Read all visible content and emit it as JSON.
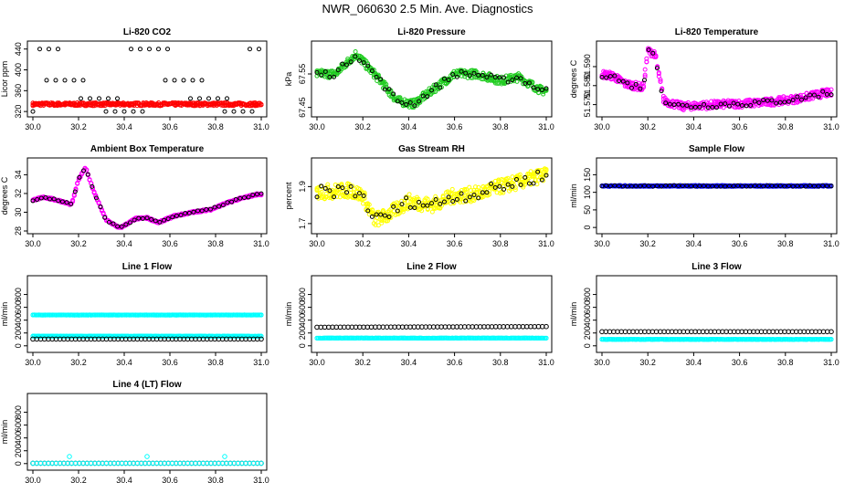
{
  "title": "NWR_060630  2.5 Min. Ave. Diagnostics",
  "colors": {
    "red": "#ff0000",
    "green": "#22cc22",
    "magenta": "#ff00ff",
    "yellow": "#ffff00",
    "blue": "#0000ff",
    "cyan": "#00ffff",
    "black": "#000000"
  },
  "chart_data": [
    {
      "id": "li820-co2",
      "type": "scatter",
      "title": "Li-820 CO2",
      "xlabel": "",
      "ylabel": "Licor ppm",
      "xlim": [
        30.0,
        31.0
      ],
      "ylim": [
        315,
        450
      ],
      "xticks": [
        "30.0",
        "30.2",
        "30.4",
        "30.6",
        "30.8",
        "31.0"
      ],
      "yticks": [
        320,
        360,
        400,
        440
      ],
      "series": [
        {
          "name": "co2-ave",
          "color": "red",
          "y_start": 334,
          "y_end": 334,
          "kind": "band",
          "noise": 3
        },
        {
          "name": "co2-ref",
          "color": "black",
          "kind": "scattered",
          "levels": [
            320,
            345,
            380,
            440
          ]
        }
      ]
    },
    {
      "id": "li820-pressure",
      "type": "scatter",
      "title": "Li-820 Pressure",
      "xlabel": "",
      "ylabel": "kPa",
      "xlim": [
        30.0,
        31.0
      ],
      "ylim": [
        67.43,
        67.64
      ],
      "xticks": [
        "30.0",
        "30.2",
        "30.4",
        "30.6",
        "30.8",
        "31.0"
      ],
      "yticks": [
        67.45,
        67.55
      ],
      "yticklabels": [
        "67.45",
        "67.55"
      ],
      "series": [
        {
          "name": "pressure",
          "color": "green",
          "kind": "band",
          "noise": 0.012,
          "knots": [
            [
              30.0,
              67.55
            ],
            [
              30.08,
              67.55
            ],
            [
              30.17,
              67.61
            ],
            [
              30.25,
              67.55
            ],
            [
              30.35,
              67.47
            ],
            [
              30.42,
              67.46
            ],
            [
              30.5,
              67.5
            ],
            [
              30.6,
              67.55
            ],
            [
              30.7,
              67.55
            ],
            [
              30.8,
              67.53
            ],
            [
              30.88,
              67.54
            ],
            [
              30.98,
              67.5
            ]
          ]
        },
        {
          "name": "pressure-black",
          "color": "black",
          "kind": "overlay"
        }
      ]
    },
    {
      "id": "li820-temperature",
      "type": "scatter",
      "title": "Li-820 Temperature",
      "xlabel": "",
      "ylabel": "degrees C",
      "xlim": [
        30.0,
        31.0
      ],
      "ylim": [
        51.565,
        51.602
      ],
      "xticks": [
        "30.0",
        "30.2",
        "30.4",
        "30.6",
        "30.8",
        "31.0"
      ],
      "yticks": [
        51.57,
        51.58,
        51.59
      ],
      "yticklabels": [
        "51.570",
        "51.580",
        "51.590"
      ],
      "series": [
        {
          "name": "temperature",
          "color": "magenta",
          "kind": "band",
          "noise": 0.002,
          "knots": [
            [
              30.0,
              51.586
            ],
            [
              30.05,
              51.585
            ],
            [
              30.1,
              51.581
            ],
            [
              30.18,
              51.579
            ],
            [
              30.2,
              51.598
            ],
            [
              30.23,
              51.597
            ],
            [
              30.27,
              51.572
            ],
            [
              30.35,
              51.569
            ],
            [
              30.5,
              51.57
            ],
            [
              30.7,
              51.571
            ],
            [
              30.85,
              51.573
            ],
            [
              30.97,
              51.576
            ]
          ]
        },
        {
          "name": "temperature-black",
          "color": "black",
          "kind": "overlay"
        }
      ]
    },
    {
      "id": "ambient-box-temperature",
      "type": "scatter",
      "title": "Ambient Box Temperature",
      "xlabel": "",
      "ylabel": "degrees C",
      "xlim": [
        30.0,
        31.0
      ],
      "ylim": [
        28,
        35.5
      ],
      "xticks": [
        "30.0",
        "30.2",
        "30.4",
        "30.6",
        "30.8",
        "31.0"
      ],
      "yticks": [
        28,
        30,
        32,
        34
      ],
      "series": [
        {
          "name": "box-temp",
          "color": "magenta",
          "kind": "band",
          "noise": 0.1,
          "knots": [
            [
              30.0,
              31.3
            ],
            [
              30.05,
              31.6
            ],
            [
              30.12,
              31.2
            ],
            [
              30.17,
              30.8
            ],
            [
              30.2,
              33.5
            ],
            [
              30.23,
              34.8
            ],
            [
              30.27,
              32.0
            ],
            [
              30.32,
              29.2
            ],
            [
              30.38,
              28.3
            ],
            [
              30.45,
              29.3
            ],
            [
              30.5,
              29.4
            ],
            [
              30.55,
              28.9
            ],
            [
              30.62,
              29.6
            ],
            [
              30.7,
              30.0
            ],
            [
              30.78,
              30.3
            ],
            [
              30.83,
              30.8
            ],
            [
              30.9,
              31.4
            ],
            [
              30.98,
              31.9
            ]
          ]
        },
        {
          "name": "box-temp-black",
          "color": "black",
          "kind": "overlay"
        }
      ]
    },
    {
      "id": "gas-stream-rh",
      "type": "scatter",
      "title": "Gas Stream RH",
      "xlabel": "",
      "ylabel": "percent",
      "xlim": [
        30.0,
        31.0
      ],
      "ylim": [
        1.66,
        2.04
      ],
      "xticks": [
        "30.0",
        "30.2",
        "30.4",
        "30.6",
        "30.8",
        "31.0"
      ],
      "yticks": [
        1.7,
        1.9
      ],
      "yticklabels": [
        "1.7",
        "1.9"
      ],
      "series": [
        {
          "name": "rh",
          "color": "yellow",
          "kind": "band",
          "noise": 0.04,
          "knots": [
            [
              30.0,
              1.87
            ],
            [
              30.15,
              1.88
            ],
            [
              30.2,
              1.85
            ],
            [
              30.25,
              1.72
            ],
            [
              30.3,
              1.74
            ],
            [
              30.4,
              1.82
            ],
            [
              30.5,
              1.8
            ],
            [
              30.6,
              1.85
            ],
            [
              30.7,
              1.86
            ],
            [
              30.8,
              1.9
            ],
            [
              30.9,
              1.93
            ],
            [
              30.98,
              1.96
            ]
          ]
        },
        {
          "name": "rh-black",
          "color": "black",
          "kind": "overlay"
        }
      ]
    },
    {
      "id": "sample-flow",
      "type": "scatter",
      "title": "Sample Flow",
      "xlabel": "",
      "ylabel": "ml/min",
      "xlim": [
        30.0,
        31.0
      ],
      "ylim": [
        -10,
        190
      ],
      "xticks": [
        "30.0",
        "30.2",
        "30.4",
        "30.6",
        "30.8",
        "31.0"
      ],
      "yticks": [
        0,
        50,
        100,
        150
      ],
      "series": [
        {
          "name": "flow-blue",
          "color": "blue",
          "kind": "band",
          "noise": 1.5,
          "knots": [
            [
              30.0,
              118
            ],
            [
              31.0,
              118
            ]
          ]
        },
        {
          "name": "flow-black",
          "color": "black",
          "kind": "overlay"
        }
      ]
    },
    {
      "id": "line-1-flow",
      "type": "scatter",
      "title": "Line 1 Flow",
      "xlabel": "",
      "ylabel": "ml/min",
      "xlim": [
        30.0,
        31.0
      ],
      "ylim": [
        -60,
        1050
      ],
      "xticks": [
        "30.0",
        "30.2",
        "30.4",
        "30.6",
        "30.8",
        "31.0"
      ],
      "yticks": [
        0,
        200,
        400,
        600,
        800
      ],
      "series": [
        {
          "name": "l1-high",
          "color": "cyan",
          "kind": "band",
          "noise": 3,
          "knots": [
            [
              30.0,
              480
            ],
            [
              31.0,
              480
            ]
          ]
        },
        {
          "name": "l1-mid",
          "color": "cyan",
          "kind": "band",
          "noise": 3,
          "knots": [
            [
              30.0,
              150
            ],
            [
              31.0,
              150
            ]
          ]
        },
        {
          "name": "l1-low",
          "color": "black",
          "kind": "ring",
          "knots": [
            [
              30.0,
              105
            ],
            [
              31.0,
              105
            ]
          ]
        }
      ]
    },
    {
      "id": "line-2-flow",
      "type": "scatter",
      "title": "Line 2 Flow",
      "xlabel": "",
      "ylabel": "ml/min",
      "xlim": [
        30.0,
        31.0
      ],
      "ylim": [
        -60,
        1050
      ],
      "xticks": [
        "30.0",
        "30.2",
        "30.4",
        "30.6",
        "30.8",
        "31.0"
      ],
      "yticks": [
        0,
        200,
        400,
        600,
        800
      ],
      "series": [
        {
          "name": "l2-high",
          "color": "black",
          "kind": "ring",
          "knots": [
            [
              30.0,
              290
            ],
            [
              31.0,
              300
            ]
          ]
        },
        {
          "name": "l2-low",
          "color": "cyan",
          "kind": "band",
          "noise": 3,
          "knots": [
            [
              30.0,
              120
            ],
            [
              31.0,
              120
            ]
          ]
        }
      ]
    },
    {
      "id": "line-3-flow",
      "type": "scatter",
      "title": "Line 3 Flow",
      "xlabel": "",
      "ylabel": "ml/min",
      "xlim": [
        30.0,
        31.0
      ],
      "ylim": [
        -60,
        1050
      ],
      "xticks": [
        "30.0",
        "30.2",
        "30.4",
        "30.6",
        "30.8",
        "31.0"
      ],
      "yticks": [
        0,
        200,
        400,
        600,
        800
      ],
      "series": [
        {
          "name": "l3-high",
          "color": "black",
          "kind": "ring",
          "knots": [
            [
              30.0,
              220
            ],
            [
              31.0,
              220
            ]
          ]
        },
        {
          "name": "l3-low",
          "color": "cyan",
          "kind": "band",
          "noise": 3,
          "knots": [
            [
              30.0,
              100
            ],
            [
              31.0,
              100
            ]
          ]
        }
      ]
    },
    {
      "id": "line-4-flow",
      "type": "scatter",
      "title": "Line 4 (LT) Flow",
      "xlabel": "",
      "ylabel": "ml/min",
      "xlim": [
        30.0,
        31.0
      ],
      "ylim": [
        -60,
        1050
      ],
      "xticks": [
        "30.0",
        "30.2",
        "30.4",
        "30.6",
        "30.8",
        "31.0"
      ],
      "yticks": [
        0,
        200,
        400,
        600,
        800
      ],
      "series": [
        {
          "name": "l4-base",
          "color": "black",
          "kind": "ring",
          "knots": [
            [
              30.0,
              5
            ],
            [
              31.0,
              5
            ]
          ]
        },
        {
          "name": "l4-cyan",
          "color": "cyan",
          "kind": "ring",
          "knots": [
            [
              30.0,
              5
            ],
            [
              31.0,
              5
            ]
          ]
        },
        {
          "name": "l4-spikes",
          "color": "cyan",
          "kind": "points",
          "points": [
            [
              30.16,
              110
            ],
            [
              30.5,
              110
            ],
            [
              30.84,
              110
            ]
          ]
        }
      ]
    }
  ]
}
